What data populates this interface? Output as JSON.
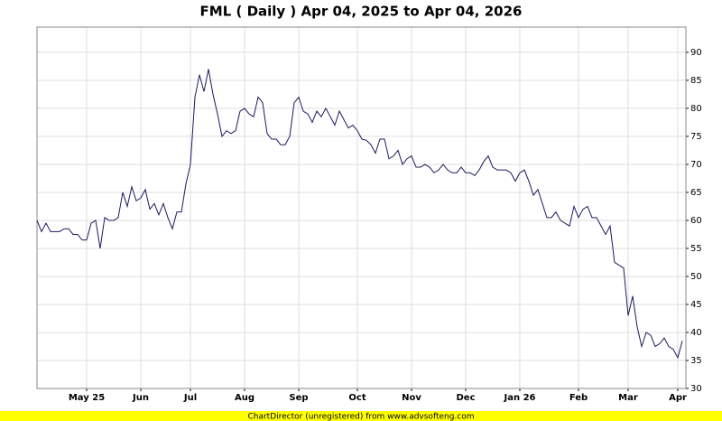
{
  "chart_data": {
    "type": "line",
    "title": "FML ( Daily ) Apr 04, 2025 to Apr 04, 2026",
    "footer": "ChartDirector (unregistered) from www.advsofteng.com",
    "categories": [
      null,
      null,
      null,
      null,
      null,
      null,
      null,
      null,
      null,
      null,
      null,
      "May 25",
      null,
      null,
      null,
      null,
      null,
      null,
      null,
      null,
      null,
      null,
      null,
      "Jun",
      null,
      null,
      null,
      null,
      null,
      null,
      null,
      null,
      null,
      null,
      "Jul",
      null,
      null,
      null,
      null,
      null,
      null,
      null,
      null,
      null,
      null,
      null,
      "Aug",
      null,
      null,
      null,
      null,
      null,
      null,
      null,
      null,
      null,
      null,
      null,
      "Sep",
      null,
      null,
      null,
      null,
      null,
      null,
      null,
      null,
      null,
      null,
      null,
      null,
      "Oct",
      null,
      null,
      null,
      null,
      null,
      null,
      null,
      null,
      null,
      null,
      null,
      "Nov",
      null,
      null,
      null,
      null,
      null,
      null,
      null,
      null,
      null,
      null,
      null,
      "Dec",
      null,
      null,
      null,
      null,
      null,
      null,
      null,
      null,
      null,
      null,
      null,
      "Jan 26",
      null,
      null,
      null,
      null,
      null,
      null,
      null,
      null,
      null,
      null,
      null,
      null,
      "Feb",
      null,
      null,
      null,
      null,
      null,
      null,
      null,
      null,
      null,
      null,
      "Mar",
      null,
      null,
      null,
      null,
      null,
      null,
      null,
      null,
      null,
      null,
      "Apr",
      null
    ],
    "values": [
      60,
      58,
      59.5,
      58,
      58,
      58,
      58.5,
      58.5,
      57.5,
      57.5,
      56.5,
      56.5,
      59.5,
      60,
      55,
      60.5,
      60,
      60,
      60.5,
      65,
      62.5,
      66,
      63.5,
      64,
      65.5,
      62,
      63,
      61,
      63,
      60.5,
      58.5,
      61.5,
      61.5,
      66.5,
      70,
      82,
      86,
      83,
      87,
      82.5,
      79,
      75,
      76,
      75.5,
      76,
      79.5,
      80,
      79,
      78.5,
      82,
      81,
      75.5,
      74.5,
      74.5,
      73.5,
      73.5,
      75,
      81,
      82,
      79.5,
      79,
      77.5,
      79.5,
      78.5,
      80,
      78.5,
      77,
      79.5,
      78,
      76.5,
      77,
      76,
      74.5,
      74.3,
      73.5,
      72,
      74.5,
      74.5,
      71,
      71.5,
      72.5,
      70,
      71,
      71.5,
      69.5,
      69.5,
      70,
      69.5,
      68.5,
      69,
      70,
      69,
      68.5,
      68.5,
      69.5,
      68.5,
      68.5,
      68,
      69,
      70.5,
      71.5,
      69.5,
      69,
      69,
      69,
      68.5,
      67,
      68.5,
      69,
      67,
      64.5,
      65.5,
      63,
      60.5,
      60.5,
      61.5,
      60,
      59.5,
      59,
      62.5,
      60.5,
      62,
      62.5,
      60.5,
      60.5,
      59,
      57.5,
      59,
      52.5,
      52,
      51.5,
      43,
      46.5,
      41,
      37.5,
      40,
      39.5,
      37.5,
      38,
      39,
      37.5,
      37,
      35.5,
      38.5
    ],
    "color": "#1a1a5e",
    "ylim": [
      30,
      94.5
    ],
    "yticks": [
      30,
      35,
      40,
      45,
      50,
      55,
      60,
      65,
      70,
      75,
      80,
      85,
      90
    ],
    "grid": true
  }
}
